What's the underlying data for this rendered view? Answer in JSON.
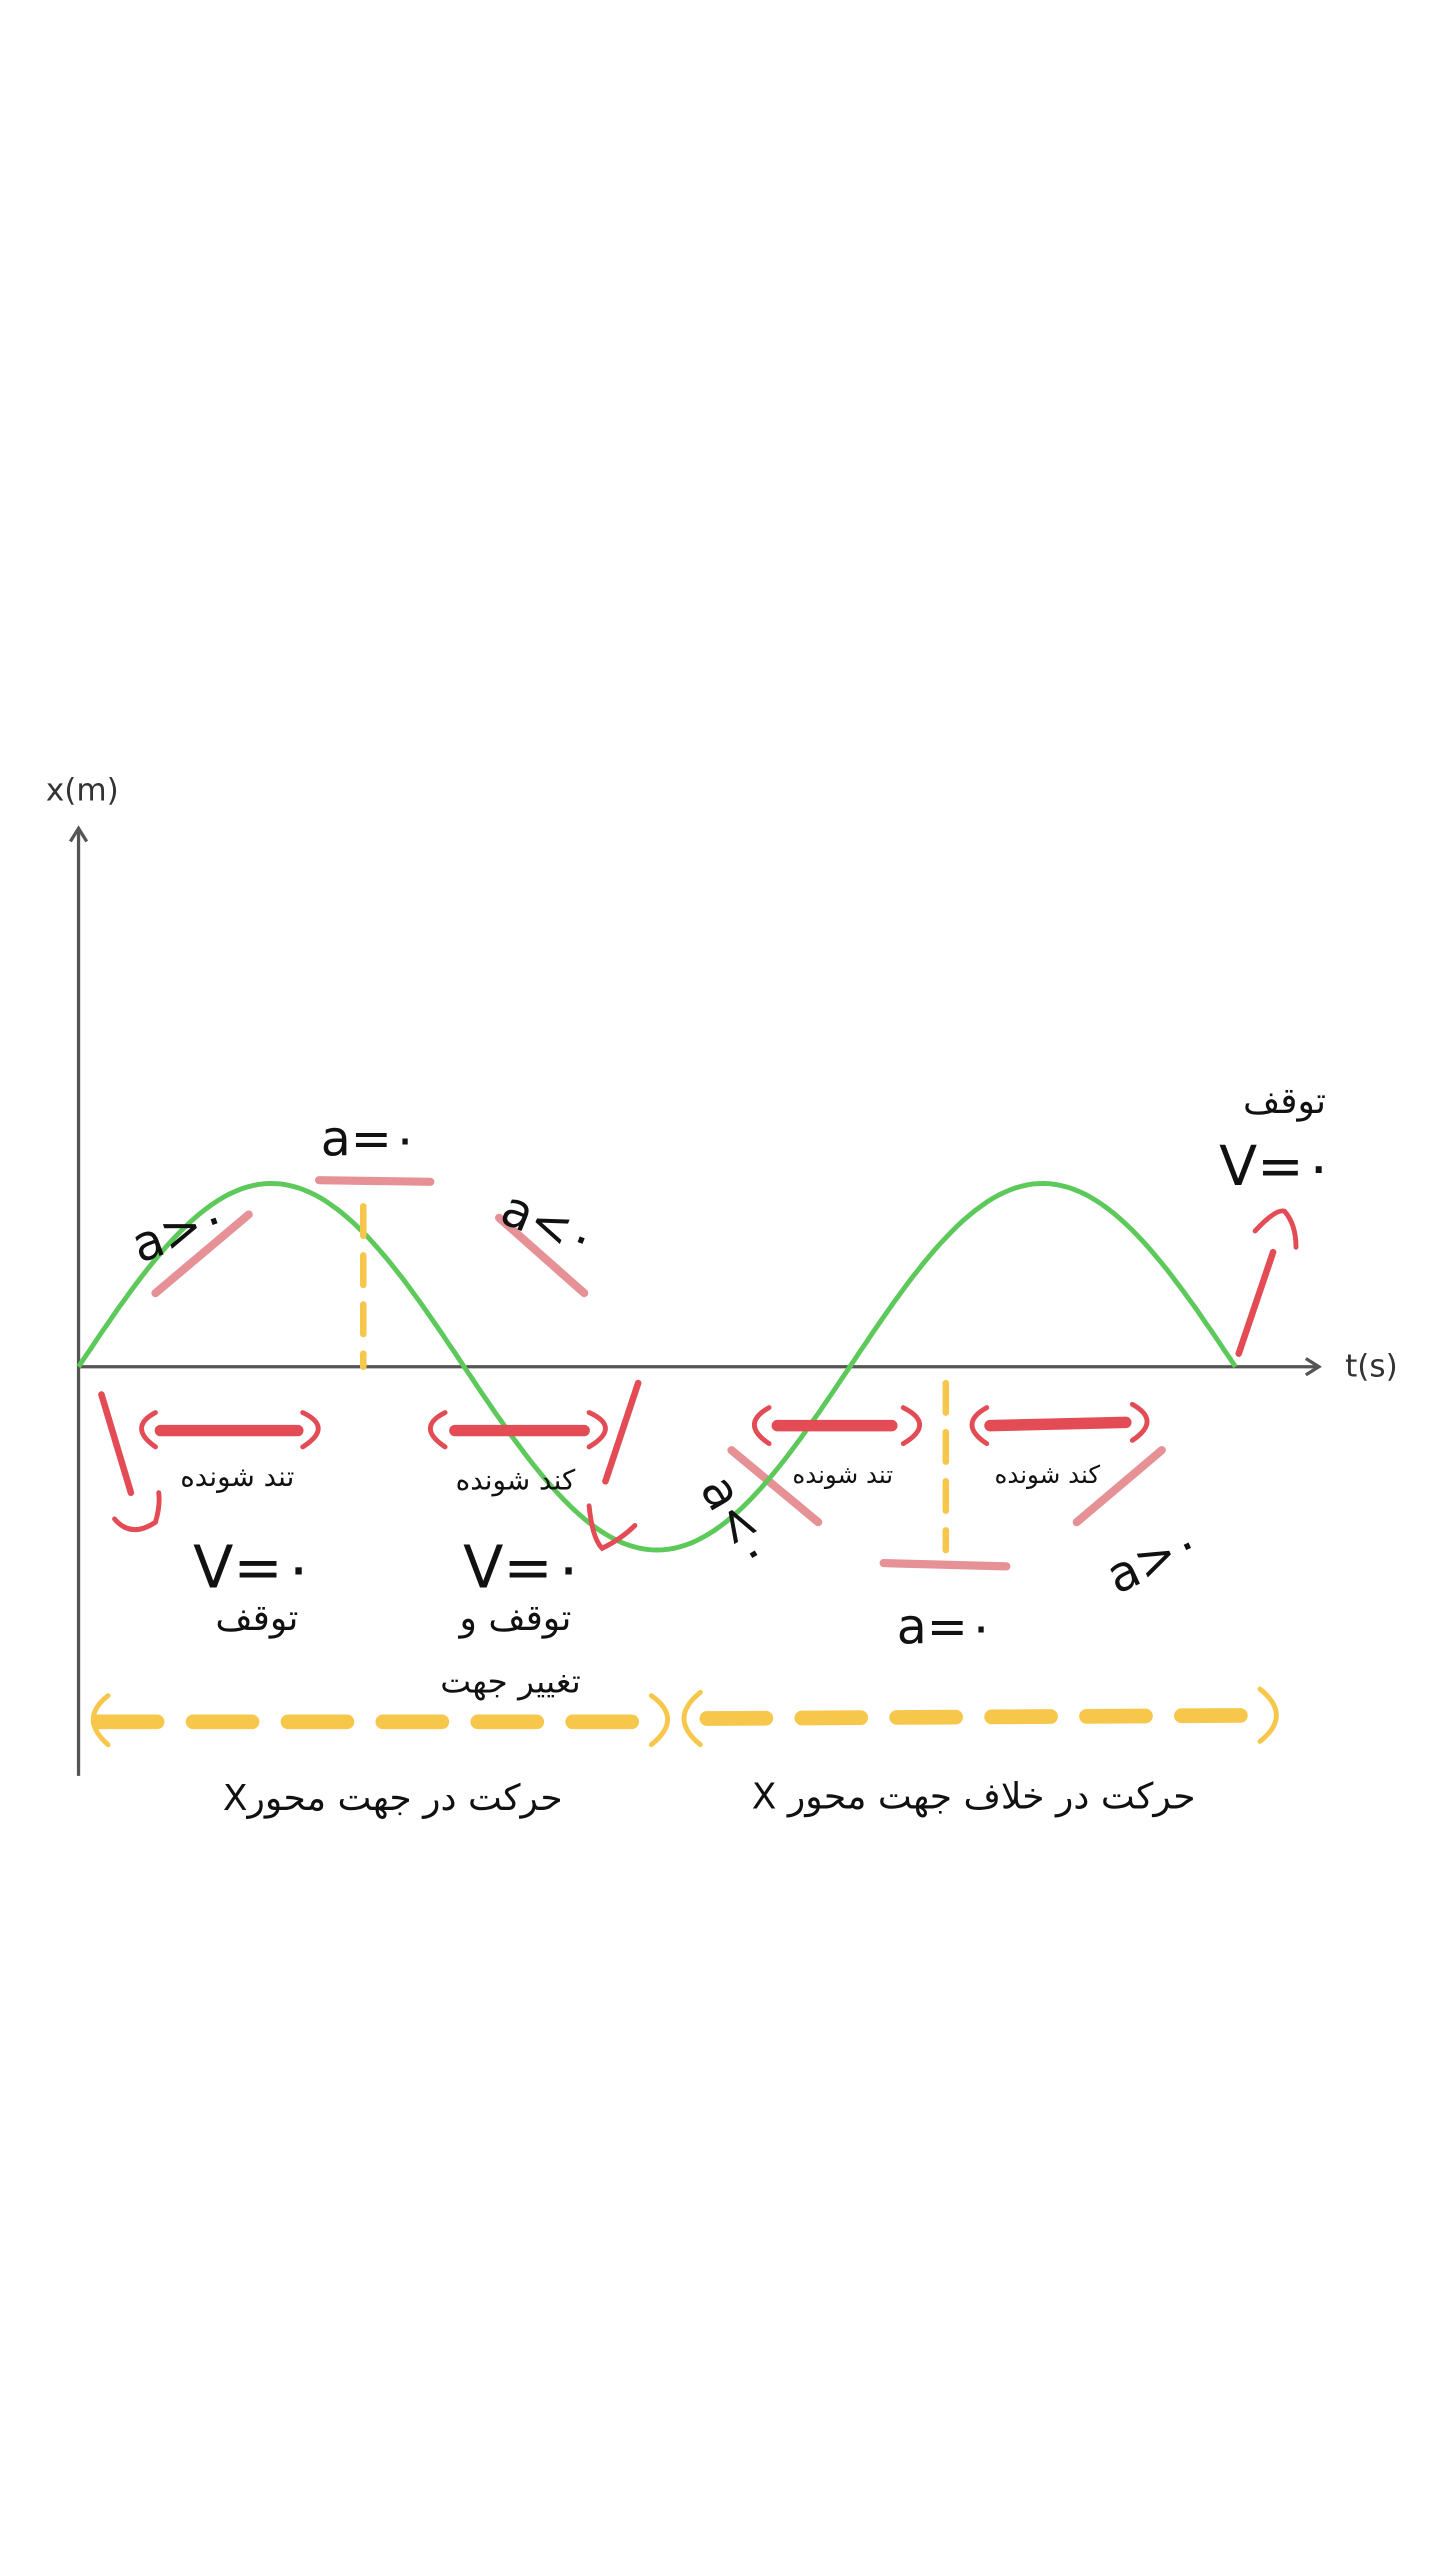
{
  "axes": {
    "y_label": "x(m)",
    "x_label": "t(s)"
  },
  "colors": {
    "curve": "#5cc95a",
    "red": "#e34b55",
    "pink": "#e59196",
    "yellow": "#f7c74c",
    "axis": "#555555"
  },
  "curve": {
    "shape": "sine",
    "periods": 1.5
  },
  "labels": {
    "a_pos_1": "a>۰",
    "a_zero_top": "a=۰",
    "a_neg_1": "a<۰",
    "a_neg_2": "a<۰",
    "a_zero_bottom": "a=۰",
    "a_pos_2": "a>۰",
    "speeding_1": "تند شونده",
    "slowing_1": "کند شونده",
    "speeding_2": "تند شونده",
    "slowing_2": "کند شونده",
    "v0_1": "V=۰",
    "stop_1": "توقف",
    "v0_2": "V=۰",
    "stop_2": "توقف و",
    "turn_2": "تغییر جهت",
    "stop_end": "توقف",
    "v0_end": "V=۰",
    "motion_positive": "حرکت در جهت محورX",
    "motion_negative": "حرکت در خلاف جهت محور X"
  }
}
